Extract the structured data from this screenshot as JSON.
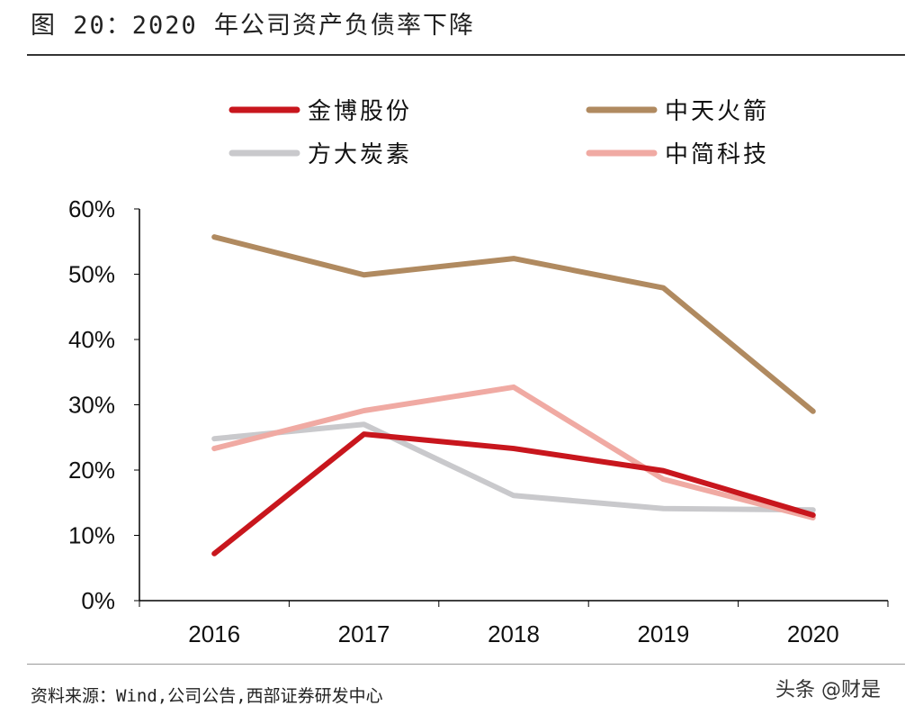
{
  "title": "图 20：2020 年公司资产负债率下降",
  "source": "资料来源：Wind,公司公告,西部证券研发中心",
  "watermark": "头条 @财是",
  "chart_data": {
    "type": "line",
    "categories": [
      "2016",
      "2017",
      "2018",
      "2019",
      "2020"
    ],
    "ylim": [
      0,
      60
    ],
    "yticks": [
      "0%",
      "10%",
      "20%",
      "30%",
      "40%",
      "50%",
      "60%"
    ],
    "yunit": "%",
    "legend_position": "top",
    "grid": false,
    "series": [
      {
        "name": "金博股份",
        "color": "#c8161d",
        "values": [
          7.2,
          25.5,
          23.3,
          19.9,
          13.1
        ]
      },
      {
        "name": "中天火箭",
        "color": "#b08a60",
        "values": [
          55.7,
          49.9,
          52.4,
          47.9,
          29.0
        ]
      },
      {
        "name": "方大炭素",
        "color": "#c9c9cc",
        "values": [
          24.8,
          27.0,
          16.1,
          14.1,
          13.9
        ]
      },
      {
        "name": "中简科技",
        "color": "#f0aaa3",
        "values": [
          23.3,
          29.1,
          32.7,
          18.6,
          12.7
        ]
      }
    ]
  }
}
